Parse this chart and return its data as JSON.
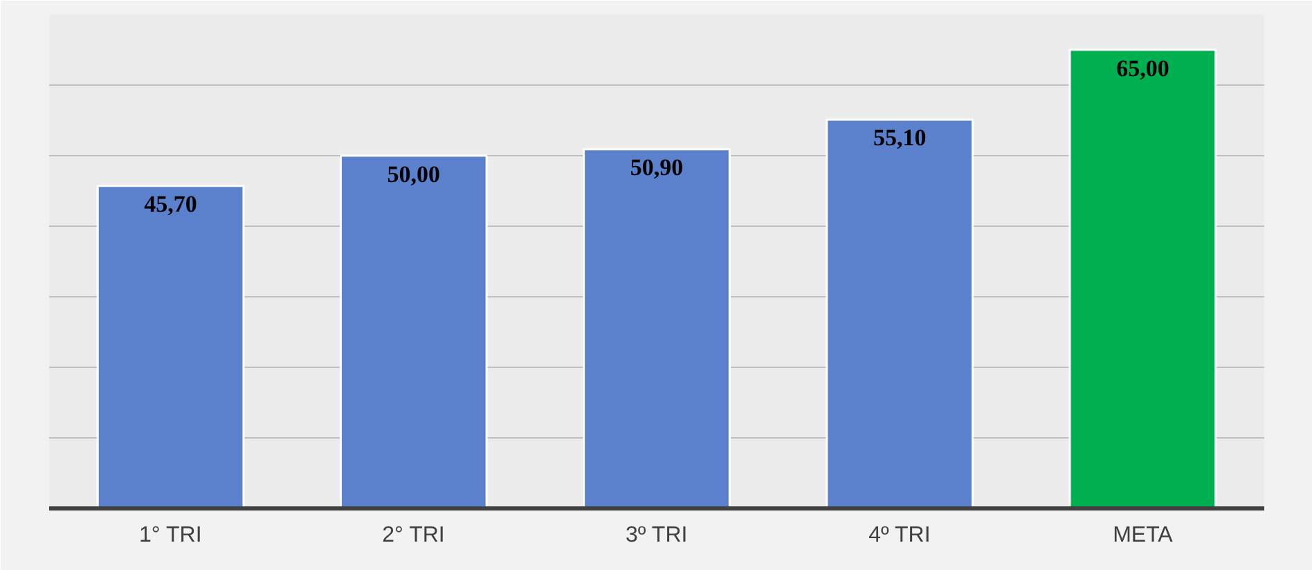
{
  "chart_data": {
    "type": "bar",
    "categories": [
      "1° TRI",
      "2° TRI",
      "3º TRI",
      "4º TRI",
      "META"
    ],
    "values": [
      45.7,
      50.0,
      50.9,
      55.1,
      65.0
    ],
    "colors": [
      "#5b80cc",
      "#5b80cc",
      "#5b80cc",
      "#5b80cc",
      "#00b050"
    ],
    "value_labels": [
      "45,70",
      "50,00",
      "50,90",
      "55,10",
      "65,00"
    ],
    "ylim": [
      0,
      70
    ],
    "yticks": [
      {
        "value": 0,
        "label": null
      },
      {
        "value": 10,
        "label": null
      },
      {
        "value": 20,
        "label": null
      },
      {
        "value": 30,
        "label": null
      },
      {
        "value": 40,
        "label": null
      },
      {
        "value": 50,
        "label": null
      },
      {
        "value": 60,
        "label": null
      },
      {
        "value": 70,
        "label": null
      }
    ],
    "grid": "y",
    "tick_labels": "x"
  }
}
